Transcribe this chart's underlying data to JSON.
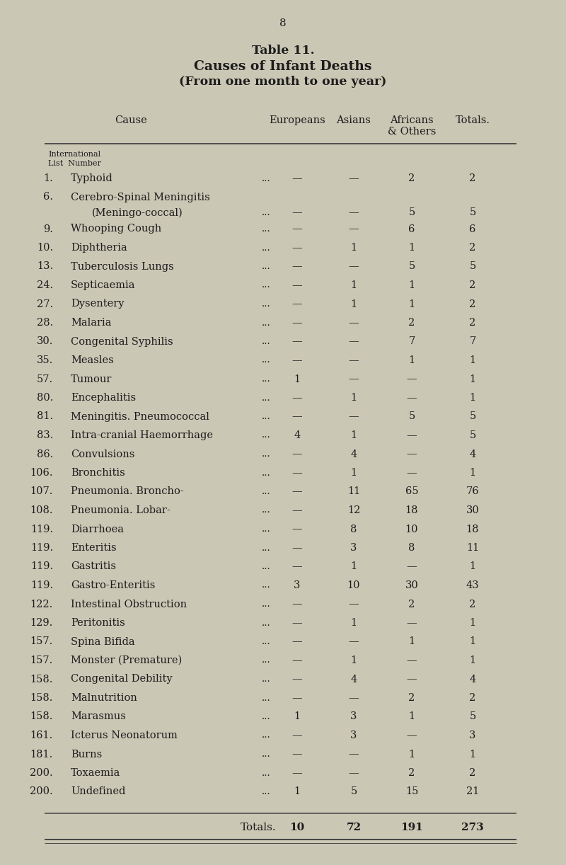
{
  "page_number": "8",
  "title_line1": "Table 11.",
  "title_line2": "Causes of Infant Deaths",
  "title_line3": "(From one month to one year)",
  "bg_color": "#cbc7b5",
  "text_color": "#1c1c1c",
  "line_color": "#444444",
  "rows": [
    {
      "num": "1.",
      "cause": "Typhoid",
      "two_line": false,
      "cause2": "",
      "eur": "—",
      "asi": "—",
      "afr": "2",
      "tot": "2"
    },
    {
      "num": "6.",
      "cause": "Cerebro-Spinal Meningitis",
      "two_line": true,
      "cause2": "(Meningo-coccal)",
      "eur": "—",
      "asi": "—",
      "afr": "5",
      "tot": "5"
    },
    {
      "num": "9.",
      "cause": "Whooping Cough",
      "two_line": false,
      "cause2": "",
      "eur": "—",
      "asi": "—",
      "afr": "6",
      "tot": "6"
    },
    {
      "num": "10.",
      "cause": "Diphtheria",
      "two_line": false,
      "cause2": "",
      "eur": "—",
      "asi": "1",
      "afr": "1",
      "tot": "2"
    },
    {
      "num": "13.",
      "cause": "Tuberculosis Lungs",
      "two_line": false,
      "cause2": "",
      "eur": "—",
      "asi": "—",
      "afr": "5",
      "tot": "5"
    },
    {
      "num": "24.",
      "cause": "Septicaemia",
      "two_line": false,
      "cause2": "",
      "eur": "—",
      "asi": "1",
      "afr": "1",
      "tot": "2"
    },
    {
      "num": "27.",
      "cause": "Dysentery",
      "two_line": false,
      "cause2": "",
      "eur": "—",
      "asi": "1",
      "afr": "1",
      "tot": "2"
    },
    {
      "num": "28.",
      "cause": "Malaria",
      "two_line": false,
      "cause2": "",
      "eur": "—",
      "asi": "—",
      "afr": "2",
      "tot": "2"
    },
    {
      "num": "30.",
      "cause": "Congenital Syphilis",
      "two_line": false,
      "cause2": "",
      "eur": "—",
      "asi": "—",
      "afr": "7",
      "tot": "7"
    },
    {
      "num": "35.",
      "cause": "Measles",
      "two_line": false,
      "cause2": "",
      "eur": "—",
      "asi": "—",
      "afr": "1",
      "tot": "1"
    },
    {
      "num": "57.",
      "cause": "Tumour",
      "two_line": false,
      "cause2": "",
      "eur": "1",
      "asi": "—",
      "afr": "—",
      "tot": "1"
    },
    {
      "num": "80.",
      "cause": "Encephalitis",
      "two_line": false,
      "cause2": "",
      "eur": "—",
      "asi": "1",
      "afr": "—",
      "tot": "1"
    },
    {
      "num": "81.",
      "cause": "Meningitis. Pneumococcal",
      "two_line": false,
      "cause2": "",
      "eur": "—",
      "asi": "—",
      "afr": "5",
      "tot": "5"
    },
    {
      "num": "83.",
      "cause": "Intra-cranial Haemorrhage",
      "two_line": false,
      "cause2": "",
      "eur": "4",
      "asi": "1",
      "afr": "—",
      "tot": "5"
    },
    {
      "num": "86.",
      "cause": "Convulsions",
      "two_line": false,
      "cause2": "",
      "eur": "—",
      "asi": "4",
      "afr": "—",
      "tot": "4"
    },
    {
      "num": "106.",
      "cause": "Bronchitis",
      "two_line": false,
      "cause2": "",
      "eur": "—",
      "asi": "1",
      "afr": "—",
      "tot": "1"
    },
    {
      "num": "107.",
      "cause": "Pneumonia. Broncho-",
      "two_line": false,
      "cause2": "",
      "eur": "—",
      "asi": "11",
      "afr": "65",
      "tot": "76"
    },
    {
      "num": "108.",
      "cause": "Pneumonia. Lobar-",
      "two_line": false,
      "cause2": "",
      "eur": "—",
      "asi": "12",
      "afr": "18",
      "tot": "30"
    },
    {
      "num": "119.",
      "cause": "Diarrhoea",
      "two_line": false,
      "cause2": "",
      "eur": "—",
      "asi": "8",
      "afr": "10",
      "tot": "18"
    },
    {
      "num": "119.",
      "cause": "Enteritis",
      "two_line": false,
      "cause2": "",
      "eur": "—",
      "asi": "3",
      "afr": "8",
      "tot": "11"
    },
    {
      "num": "119.",
      "cause": "Gastritis",
      "two_line": false,
      "cause2": "",
      "eur": "—",
      "asi": "1",
      "afr": "—",
      "tot": "1"
    },
    {
      "num": "119.",
      "cause": "Gastro-Enteritis",
      "two_line": false,
      "cause2": "",
      "eur": "3",
      "asi": "10",
      "afr": "30",
      "tot": "43"
    },
    {
      "num": "122.",
      "cause": "Intestinal Obstruction",
      "two_line": false,
      "cause2": "",
      "eur": "—",
      "asi": "—",
      "afr": "2",
      "tot": "2"
    },
    {
      "num": "129.",
      "cause": "Peritonitis",
      "two_line": false,
      "cause2": "",
      "eur": "—",
      "asi": "1",
      "afr": "—",
      "tot": "1"
    },
    {
      "num": "157.",
      "cause": "Spina Bifida",
      "two_line": false,
      "cause2": "",
      "eur": "—",
      "asi": "—",
      "afr": "1",
      "tot": "1"
    },
    {
      "num": "157.",
      "cause": "Monster (Premature)",
      "two_line": false,
      "cause2": "",
      "eur": "—",
      "asi": "1",
      "afr": "—",
      "tot": "1"
    },
    {
      "num": "158.",
      "cause": "Congenital Debility",
      "two_line": false,
      "cause2": "",
      "eur": "—",
      "asi": "4",
      "afr": "—",
      "tot": "4"
    },
    {
      "num": "158.",
      "cause": "Malnutrition",
      "two_line": false,
      "cause2": "",
      "eur": "—",
      "asi": "—",
      "afr": "2",
      "tot": "2"
    },
    {
      "num": "158.",
      "cause": "Marasmus",
      "two_line": false,
      "cause2": "",
      "eur": "1",
      "asi": "3",
      "afr": "1",
      "tot": "5"
    },
    {
      "num": "161.",
      "cause": "Icterus Neonatorum",
      "two_line": false,
      "cause2": "",
      "eur": "—",
      "asi": "3",
      "afr": "—",
      "tot": "3"
    },
    {
      "num": "181.",
      "cause": "Burns",
      "two_line": false,
      "cause2": "",
      "eur": "—",
      "asi": "—",
      "afr": "1",
      "tot": "1"
    },
    {
      "num": "200.",
      "cause": "Toxaemia",
      "two_line": false,
      "cause2": "",
      "eur": "—",
      "asi": "—",
      "afr": "2",
      "tot": "2"
    },
    {
      "num": "200.",
      "cause": "Undefined",
      "two_line": false,
      "cause2": "",
      "eur": "1",
      "asi": "5",
      "afr": "15",
      "tot": "21"
    }
  ],
  "totals": {
    "label": "Totals.",
    "eur": "10",
    "asi": "72",
    "afr": "191",
    "tot": "273"
  }
}
